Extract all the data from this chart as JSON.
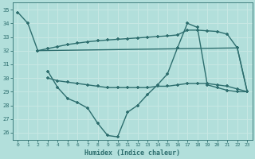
{
  "bg_color": "#b2dfdb",
  "grid_color": "#d0eeea",
  "line_color": "#2d6e6e",
  "marker": "+",
  "markersize": 3.5,
  "linewidth": 1.0,
  "xlabel": "Humidex (Indice chaleur)",
  "ylim": [
    25.5,
    35.5
  ],
  "xlim": [
    -0.5,
    23.5
  ],
  "yticks": [
    26,
    27,
    28,
    29,
    30,
    31,
    32,
    33,
    34,
    35
  ],
  "xticks": [
    0,
    1,
    2,
    3,
    4,
    5,
    6,
    7,
    8,
    9,
    10,
    11,
    12,
    13,
    14,
    15,
    16,
    17,
    18,
    19,
    20,
    21,
    22,
    23
  ],
  "line1_x": [
    0,
    1,
    2,
    22,
    23
  ],
  "line1_y": [
    34.8,
    34.0,
    32.0,
    32.2,
    29.0
  ],
  "line2_x": [
    2,
    3,
    4,
    5,
    6,
    7,
    8,
    9,
    10,
    11,
    12,
    13,
    14,
    15,
    16,
    17,
    18,
    19,
    20,
    21,
    22,
    23
  ],
  "line2_y": [
    32.0,
    32.15,
    32.3,
    32.45,
    32.55,
    32.65,
    32.72,
    32.78,
    32.83,
    32.88,
    32.93,
    32.98,
    33.03,
    33.08,
    33.15,
    33.5,
    33.5,
    33.45,
    33.4,
    33.2,
    32.2,
    29.0
  ],
  "line3_x": [
    3,
    4,
    5,
    6,
    7,
    8,
    9,
    10,
    11,
    12,
    13,
    14,
    15,
    16,
    17,
    18,
    19,
    20,
    21,
    22,
    23
  ],
  "line3_y": [
    30.5,
    29.3,
    28.5,
    28.2,
    27.8,
    26.7,
    25.8,
    25.7,
    27.5,
    28.0,
    28.8,
    29.5,
    30.3,
    32.2,
    34.0,
    33.7,
    29.5,
    29.3,
    29.1,
    29.0,
    29.0
  ],
  "line4_x": [
    3,
    4,
    5,
    6,
    7,
    8,
    9,
    10,
    11,
    12,
    13,
    14,
    15,
    16,
    17,
    18,
    19,
    20,
    21,
    22,
    23
  ],
  "line4_y": [
    30.0,
    29.8,
    29.7,
    29.6,
    29.5,
    29.4,
    29.3,
    29.3,
    29.3,
    29.3,
    29.3,
    29.4,
    29.4,
    29.5,
    29.6,
    29.6,
    29.6,
    29.5,
    29.4,
    29.2,
    29.0
  ]
}
